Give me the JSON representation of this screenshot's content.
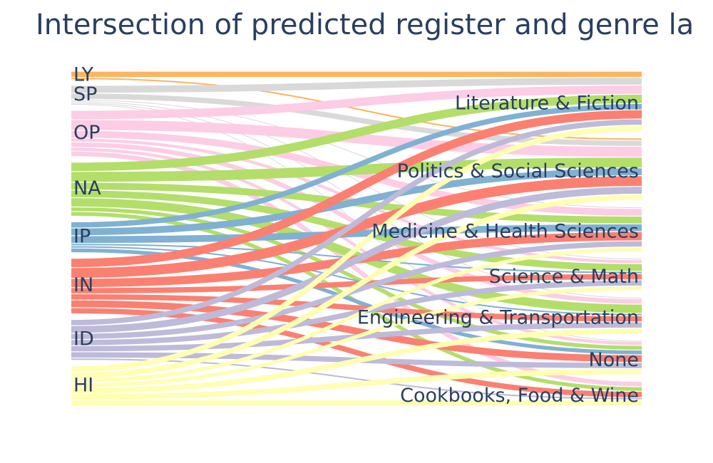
{
  "chart_data": {
    "type": "sankey",
    "title": "Intersection of predicted register and genre la",
    "sources": [
      {
        "name": "LY",
        "color": "#fdb462"
      },
      {
        "name": "SP",
        "color": "#d9d9d9"
      },
      {
        "name": "OP",
        "color": "#fccde5"
      },
      {
        "name": "NA",
        "color": "#b3de69"
      },
      {
        "name": "IP",
        "color": "#80b1d3"
      },
      {
        "name": "IN",
        "color": "#fb8072"
      },
      {
        "name": "ID",
        "color": "#bebada"
      },
      {
        "name": "HI",
        "color": "#ffffb3"
      }
    ],
    "targets": [
      "Literature & Fiction",
      "Politics & Social Sciences",
      "Medicine & Health Sciences",
      "Science & Math",
      "Engineering & Transportation",
      "None",
      "Cookbooks, Food & Wine"
    ],
    "links": [
      {
        "source": "LY",
        "target": "Literature & Fiction",
        "value": 8
      },
      {
        "source": "LY",
        "target": "Politics & Social Sciences",
        "value": 3
      },
      {
        "source": "SP",
        "target": "Literature & Fiction",
        "value": 10
      },
      {
        "source": "SP",
        "target": "Politics & Social Sciences",
        "value": 8
      },
      {
        "source": "SP",
        "target": "Medicine & Health Sciences",
        "value": 2
      },
      {
        "source": "SP",
        "target": "Science & Math",
        "value": 2
      },
      {
        "source": "SP",
        "target": "Engineering & Transportation",
        "value": 2
      },
      {
        "source": "SP",
        "target": "None",
        "value": 1
      },
      {
        "source": "OP",
        "target": "Literature & Fiction",
        "value": 12
      },
      {
        "source": "OP",
        "target": "Politics & Social Sciences",
        "value": 14
      },
      {
        "source": "OP",
        "target": "Medicine & Health Sciences",
        "value": 10
      },
      {
        "source": "OP",
        "target": "Science & Math",
        "value": 5
      },
      {
        "source": "OP",
        "target": "Engineering & Transportation",
        "value": 7
      },
      {
        "source": "OP",
        "target": "None",
        "value": 5
      },
      {
        "source": "OP",
        "target": "Cookbooks, Food & Wine",
        "value": 7
      },
      {
        "source": "NA",
        "target": "Literature & Fiction",
        "value": 12
      },
      {
        "source": "NA",
        "target": "Politics & Social Sciences",
        "value": 14
      },
      {
        "source": "NA",
        "target": "Medicine & Health Sciences",
        "value": 10
      },
      {
        "source": "NA",
        "target": "Science & Math",
        "value": 10
      },
      {
        "source": "NA",
        "target": "Engineering & Transportation",
        "value": 12
      },
      {
        "source": "NA",
        "target": "None",
        "value": 6
      },
      {
        "source": "NA",
        "target": "Cookbooks, Food & Wine",
        "value": 6
      },
      {
        "source": "IP",
        "target": "Literature & Fiction",
        "value": 8
      },
      {
        "source": "IP",
        "target": "Politics & Social Sciences",
        "value": 10
      },
      {
        "source": "IP",
        "target": "Medicine & Health Sciences",
        "value": 10
      },
      {
        "source": "IP",
        "target": "Science & Math",
        "value": 3
      },
      {
        "source": "IP",
        "target": "Engineering & Transportation",
        "value": 3
      },
      {
        "source": "IP",
        "target": "None",
        "value": 6
      },
      {
        "source": "IN",
        "target": "Literature & Fiction",
        "value": 12
      },
      {
        "source": "IN",
        "target": "Politics & Social Sciences",
        "value": 14
      },
      {
        "source": "IN",
        "target": "Medicine & Health Sciences",
        "value": 12
      },
      {
        "source": "IN",
        "target": "Science & Math",
        "value": 8
      },
      {
        "source": "IN",
        "target": "Engineering & Transportation",
        "value": 8
      },
      {
        "source": "IN",
        "target": "None",
        "value": 10
      },
      {
        "source": "IN",
        "target": "Cookbooks, Food & Wine",
        "value": 8
      },
      {
        "source": "ID",
        "target": "Literature & Fiction",
        "value": 8
      },
      {
        "source": "ID",
        "target": "Politics & Social Sciences",
        "value": 10
      },
      {
        "source": "ID",
        "target": "Medicine & Health Sciences",
        "value": 8
      },
      {
        "source": "ID",
        "target": "Science & Math",
        "value": 8
      },
      {
        "source": "ID",
        "target": "Engineering & Transportation",
        "value": 8
      },
      {
        "source": "ID",
        "target": "None",
        "value": 8
      },
      {
        "source": "ID",
        "target": "Cookbooks, Food & Wine",
        "value": 3
      },
      {
        "source": "HI",
        "target": "Literature & Fiction",
        "value": 8
      },
      {
        "source": "HI",
        "target": "Politics & Social Sciences",
        "value": 8
      },
      {
        "source": "HI",
        "target": "Medicine & Health Sciences",
        "value": 6
      },
      {
        "source": "HI",
        "target": "Science & Math",
        "value": 6
      },
      {
        "source": "HI",
        "target": "Engineering & Transportation",
        "value": 8
      },
      {
        "source": "HI",
        "target": "None",
        "value": 8
      },
      {
        "source": "HI",
        "target": "Cookbooks, Food & Wine",
        "value": 8
      }
    ]
  }
}
